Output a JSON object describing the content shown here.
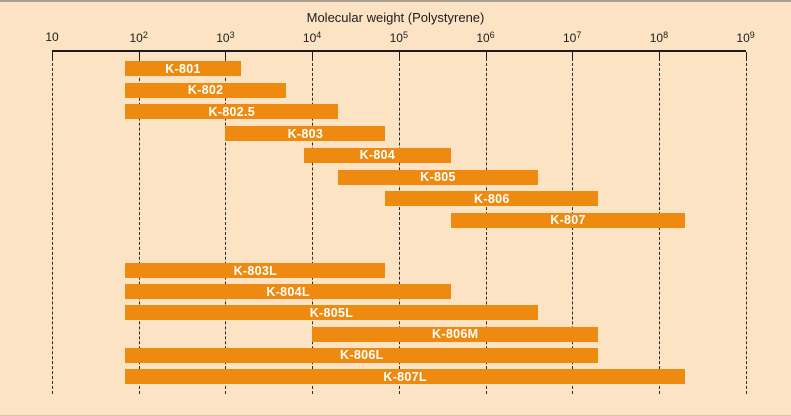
{
  "figure": {
    "background_color": "#fbe3c4",
    "bar_color": "#ee8a10",
    "axis_color": "#1c1c1c",
    "bar_label_color": "#ffffff"
  },
  "chart_data": {
    "type": "bar",
    "subtype": "horizontal-log-range-bars",
    "title": "Molecular weight (Polystyrene)",
    "x_scale": "log10",
    "x_min": 10,
    "x_max": 1000000000,
    "x_ticks": [
      {
        "base": "10",
        "exp": ""
      },
      {
        "base": "10",
        "exp": "2"
      },
      {
        "base": "10",
        "exp": "3"
      },
      {
        "base": "10",
        "exp": "4"
      },
      {
        "base": "10",
        "exp": "5"
      },
      {
        "base": "10",
        "exp": "6"
      },
      {
        "base": "10",
        "exp": "7"
      },
      {
        "base": "10",
        "exp": "8"
      },
      {
        "base": "10",
        "exp": "9"
      }
    ],
    "grid": "dashed-vertical-at-each-decade",
    "legend": "none",
    "series": [
      {
        "group": "analytical-columns",
        "bars": [
          {
            "name": "K-801",
            "mw_min": 70,
            "mw_max": 1500
          },
          {
            "name": "K-802",
            "mw_min": 70,
            "mw_max": 5000
          },
          {
            "name": "K-802.5",
            "mw_min": 70,
            "mw_max": 20000
          },
          {
            "name": "K-803",
            "mw_min": 1000,
            "mw_max": 70000
          },
          {
            "name": "K-804",
            "mw_min": 8000,
            "mw_max": 400000
          },
          {
            "name": "K-805",
            "mw_min": 20000,
            "mw_max": 4000000
          },
          {
            "name": "K-806",
            "mw_min": 70000,
            "mw_max": 20000000
          },
          {
            "name": "K-807",
            "mw_min": 400000,
            "mw_max": 200000000
          }
        ]
      },
      {
        "group": "linear-columns",
        "bars": [
          {
            "name": "K-803L",
            "mw_min": 70,
            "mw_max": 70000
          },
          {
            "name": "K-804L",
            "mw_min": 70,
            "mw_max": 400000
          },
          {
            "name": "K-805L",
            "mw_min": 70,
            "mw_max": 4000000
          },
          {
            "name": "K-806M",
            "mw_min": 10000,
            "mw_max": 20000000
          },
          {
            "name": "K-806L",
            "mw_min": 70,
            "mw_max": 20000000
          },
          {
            "name": "K-807L",
            "mw_min": 70,
            "mw_max": 200000000
          }
        ]
      }
    ]
  }
}
